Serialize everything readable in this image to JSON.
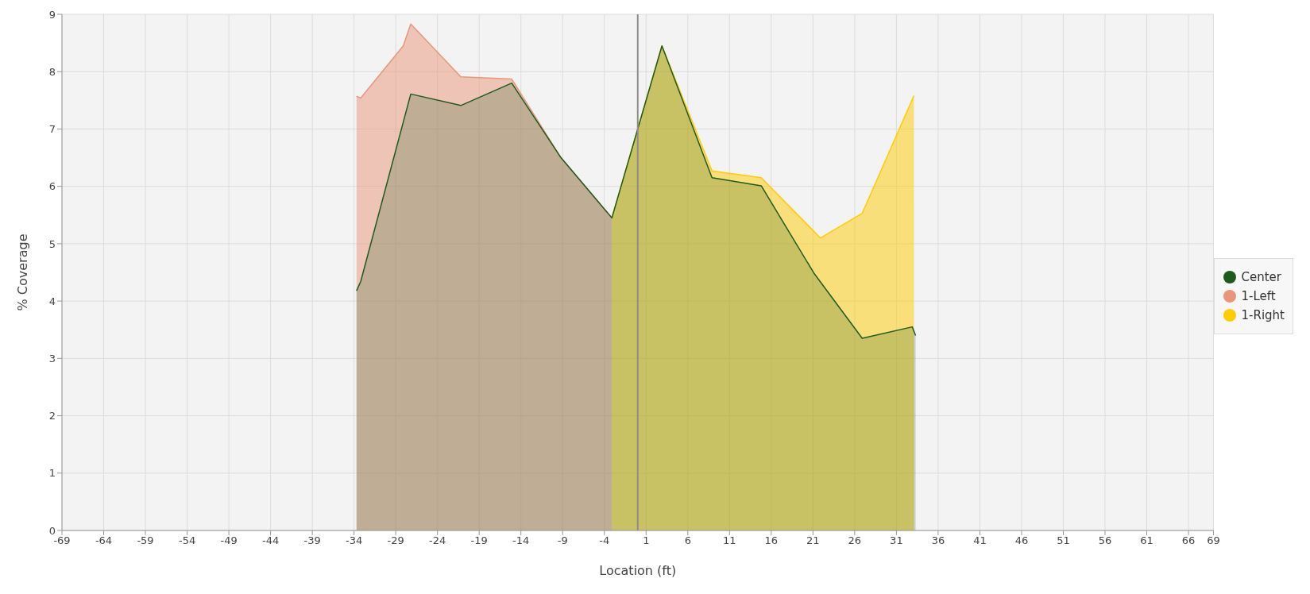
{
  "chart_data": {
    "type": "area",
    "xlabel": "Location (ft)",
    "ylabel": "% Coverage",
    "xlim": [
      -69,
      69
    ],
    "xticks": [
      -69,
      -64,
      -59,
      -54,
      -49,
      -44,
      -39,
      -34,
      -29,
      -24,
      -19,
      -14,
      -9,
      -4,
      1,
      6,
      11,
      16,
      21,
      26,
      31,
      36,
      41,
      46,
      51,
      56,
      61,
      66,
      69
    ],
    "ylim": [
      0,
      9
    ],
    "yticks": [
      0,
      1,
      2,
      3,
      4,
      5,
      6,
      7,
      8,
      9
    ],
    "grid": true,
    "legend": "right",
    "marker": "none",
    "ref_lines": [
      {
        "axis": "x",
        "value": 0,
        "color": "#8c8c8c"
      }
    ],
    "series": [
      {
        "name": "Center",
        "color": "#1e5a1e",
        "x": [
          -33.7,
          -33.2,
          -27.2,
          -21.2,
          -15.1,
          -9.2,
          -3.1,
          2.9,
          8.9,
          14.8,
          21.1,
          26.9,
          32.9,
          33.3
        ],
        "values": [
          4.18,
          4.34,
          7.61,
          7.41,
          7.8,
          6.5,
          5.45,
          8.45,
          6.15,
          6.01,
          4.49,
          3.35,
          3.55,
          3.4
        ]
      },
      {
        "name": "1-Left",
        "color": "#e9967a",
        "x": [
          -33.7,
          -33.2,
          -28.1,
          -27.2,
          -21.2,
          -15.1,
          -9.2,
          -3.1
        ],
        "values": [
          7.57,
          7.54,
          8.45,
          8.83,
          7.91,
          7.87,
          6.5,
          5.45
        ]
      },
      {
        "name": "1-Right",
        "color": "#ffcc00",
        "x": [
          -3.1,
          2.9,
          8.9,
          14.8,
          21.9,
          26.9,
          33.1
        ],
        "values": [
          5.45,
          8.45,
          6.27,
          6.15,
          5.1,
          5.53,
          7.58
        ]
      }
    ]
  }
}
